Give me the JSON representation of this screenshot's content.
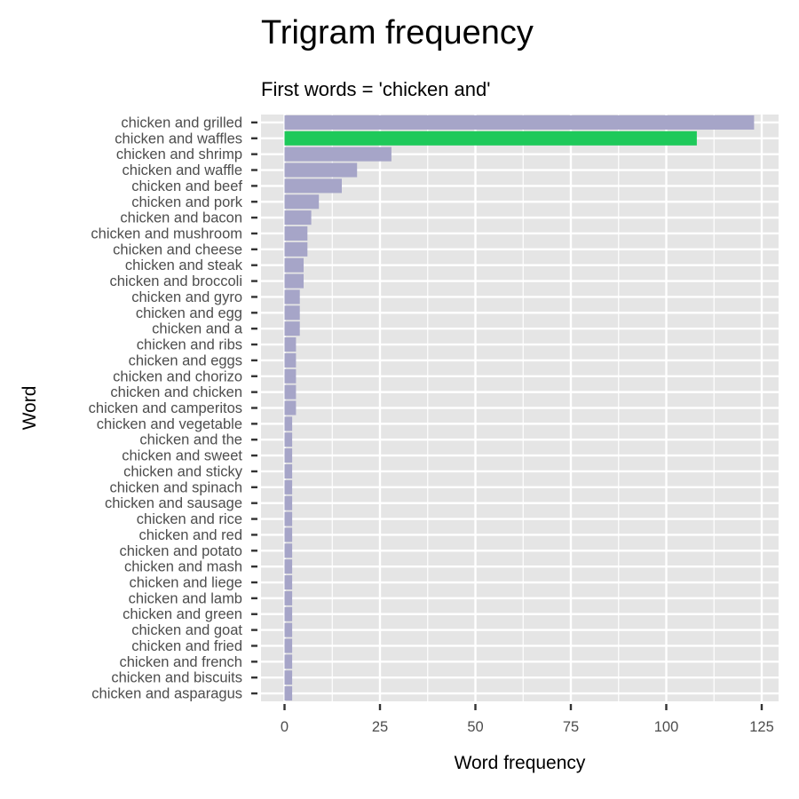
{
  "chart_data": {
    "type": "bar",
    "orientation": "horizontal",
    "title": "Trigram frequency",
    "subtitle": "First words = 'chicken and'",
    "xlabel": "Word frequency",
    "ylabel": "Word",
    "xlim": [
      0,
      125
    ],
    "xticks": [
      0,
      25,
      50,
      75,
      100,
      125
    ],
    "grid": true,
    "bar_color": "#a6a5c8",
    "highlight_color": "#1ec95a",
    "panel_color": "#e5e5e5",
    "highlight": "chicken and waffles",
    "categories": [
      "chicken and grilled",
      "chicken and waffles",
      "chicken and shrimp",
      "chicken and waffle",
      "chicken and beef",
      "chicken and pork",
      "chicken and bacon",
      "chicken and mushroom",
      "chicken and cheese",
      "chicken and steak",
      "chicken and broccoli",
      "chicken and gyro",
      "chicken and egg",
      "chicken and a",
      "chicken and ribs",
      "chicken and eggs",
      "chicken and chorizo",
      "chicken and chicken",
      "chicken and camperitos",
      "chicken and vegetable",
      "chicken and the",
      "chicken and sweet",
      "chicken and sticky",
      "chicken and spinach",
      "chicken and sausage",
      "chicken and rice",
      "chicken and red",
      "chicken and potato",
      "chicken and mash",
      "chicken and liege",
      "chicken and lamb",
      "chicken and green",
      "chicken and goat",
      "chicken and fried",
      "chicken and french",
      "chicken and biscuits",
      "chicken and asparagus"
    ],
    "values": [
      123,
      108,
      28,
      19,
      15,
      9,
      7,
      6,
      6,
      5,
      5,
      4,
      4,
      4,
      3,
      3,
      3,
      3,
      3,
      2,
      2,
      2,
      2,
      2,
      2,
      2,
      2,
      2,
      2,
      2,
      2,
      2,
      2,
      2,
      2,
      2,
      2
    ]
  }
}
